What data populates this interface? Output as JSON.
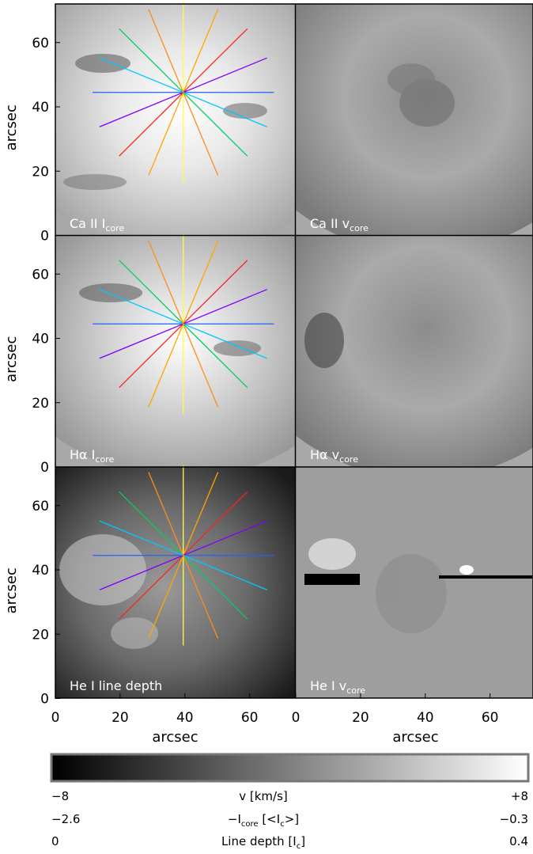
{
  "figure": {
    "axis_label": "arcsec",
    "ticks_y": [
      "0",
      "20",
      "40",
      "60"
    ],
    "ticks_x": [
      "0",
      "20",
      "40",
      "60"
    ],
    "panels": [
      {
        "label": "Ca II I",
        "sub": "core"
      },
      {
        "label": "Ca II v",
        "sub": "core"
      },
      {
        "label": "Hα I",
        "sub": "core"
      },
      {
        "label": "Hα v",
        "sub": "core"
      },
      {
        "label": "He I line depth",
        "sub": ""
      },
      {
        "label": "He I v",
        "sub": "core"
      }
    ],
    "line_colors": [
      "#ffff33",
      "#ffa500",
      "#ff2020",
      "#7f00ff",
      "#2060ff",
      "#00c8ff",
      "#00d060",
      "#ff8c1a"
    ],
    "colorbar": {
      "rows": [
        {
          "left": "−8",
          "center": "v [km/s]",
          "center_sub": "",
          "center_after": "",
          "right": "+8"
        },
        {
          "left": "−2.6",
          "center": "−I",
          "center_sub": "core",
          "center_after": " [<I",
          "center_sub2": "c",
          "center_after2": ">]",
          "right": "−0.3"
        },
        {
          "left": "0",
          "center": "Line depth [I",
          "center_sub": "c",
          "center_after": "]",
          "right": "0.4"
        }
      ]
    }
  },
  "chart_data": {
    "type": "heatmap",
    "title": "",
    "xlabel": "arcsec",
    "ylabel": "arcsec",
    "xlim": [
      0,
      74
    ],
    "ylim": [
      0,
      72
    ],
    "panel_titles": [
      "Ca II I core",
      "Ca II v core",
      "Hα I core",
      "Hα v core",
      "He I line depth",
      "He I v core"
    ],
    "cut_lines_center": [
      39.5,
      44.5
    ],
    "cut_lines_angles_deg": [
      0,
      22.5,
      45,
      67.5,
      90,
      112.5,
      135,
      157.5
    ],
    "colorbar_ranges": [
      {
        "quantity": "v [km/s]",
        "min": -8,
        "max": 8
      },
      {
        "quantity": "−I core [<I c>]",
        "min": -2.6,
        "max": -0.3
      },
      {
        "quantity": "Line depth [I c]",
        "min": 0,
        "max": 0.4
      }
    ]
  }
}
